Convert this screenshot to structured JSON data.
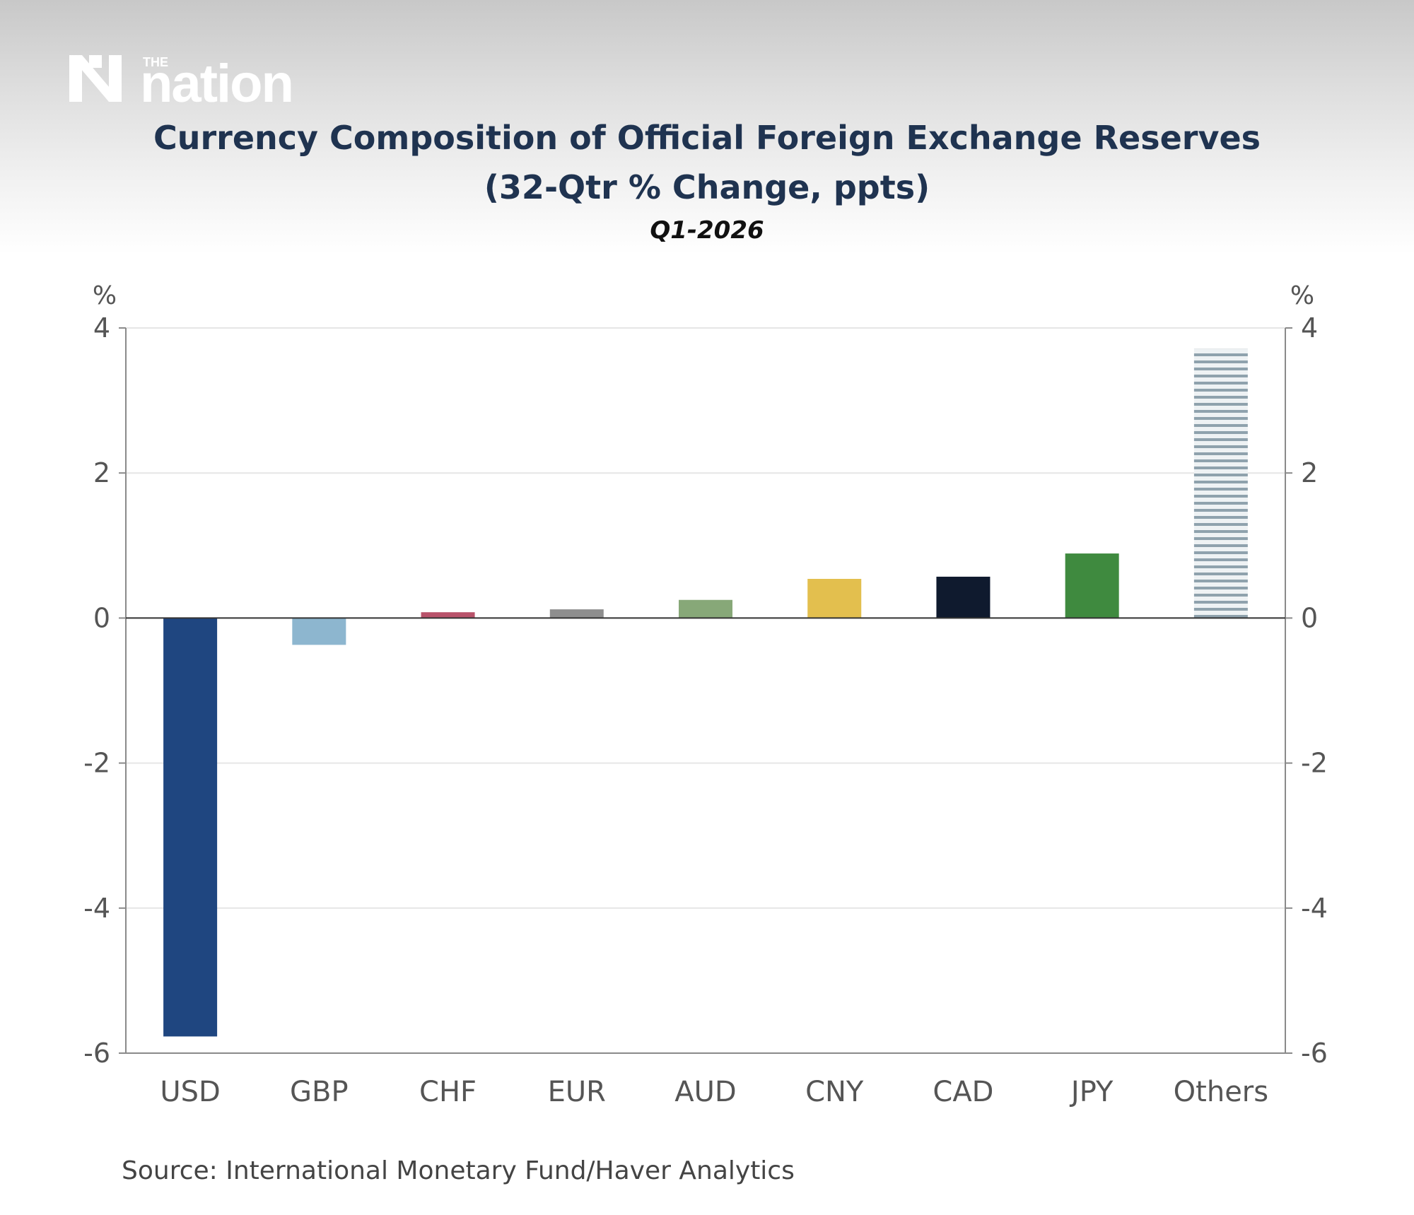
{
  "brand": {
    "kicker": "THE",
    "name": "nation"
  },
  "colors": {
    "title": "#1f3350",
    "axis": "#8a8a8a",
    "grid": "#e6e6e6",
    "tick_label": "#555555"
  },
  "chart_data": {
    "type": "bar",
    "title_line1": "Currency Composition of Official Foreign Exchange Reserves",
    "title_line2": "(32-Qtr % Change, ppts)",
    "subtitle": "Q1-2026",
    "ylabel_left": "%",
    "ylabel_right": "%",
    "ylim": [
      -6,
      4
    ],
    "yticks": [
      4,
      2,
      0,
      -2,
      -4,
      -6
    ],
    "grid": true,
    "categories": [
      "USD",
      "GBP",
      "CHF",
      "EUR",
      "AUD",
      "CNY",
      "CAD",
      "JPY",
      "Others"
    ],
    "values": [
      -5.77,
      -0.37,
      0.08,
      0.12,
      0.25,
      0.54,
      0.57,
      0.89,
      3.71
    ],
    "bar_colors": [
      "#1f4680",
      "#8db6cf",
      "#b8526a",
      "#8e8e8e",
      "#87a878",
      "#e3bf4e",
      "#0f1a2e",
      "#3f8a3f",
      "#dfe6ea"
    ],
    "bar_patterns": [
      "solid",
      "solid",
      "solid",
      "solid",
      "solid",
      "solid",
      "solid",
      "solid",
      "hatched-horizontal"
    ]
  },
  "source": "Source:  International Monetary Fund/Haver Analytics"
}
